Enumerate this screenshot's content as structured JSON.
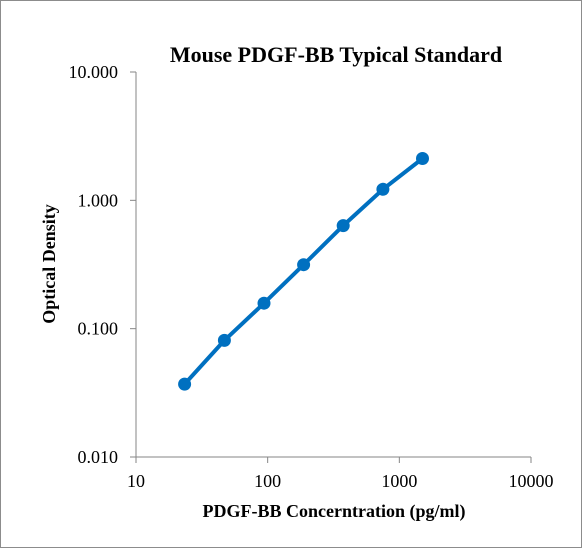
{
  "chart_data": {
    "type": "line",
    "title": "Mouse PDGF-BB Typical Standard",
    "xlabel": "PDGF-BB Concerntration (pg/ml)",
    "ylabel": "Optical Density",
    "x_scale": "log",
    "y_scale": "log",
    "xlim": [
      10,
      10000
    ],
    "ylim": [
      0.01,
      10
    ],
    "x_ticks": [
      10,
      100,
      1000,
      10000
    ],
    "x_tick_labels": [
      "10",
      "100",
      "1000",
      "10000"
    ],
    "y_ticks": [
      0.01,
      0.1,
      1,
      10
    ],
    "y_tick_labels": [
      "0.010",
      "0.100",
      "1.000",
      "10.000"
    ],
    "grid": false,
    "legend": "none",
    "series": [
      {
        "x": [
          23.4,
          46.9,
          93.8,
          187.5,
          375,
          750,
          1500
        ],
        "y": [
          0.037,
          0.081,
          0.158,
          0.315,
          0.635,
          1.22,
          2.12
        ],
        "color": "#0070C0"
      }
    ]
  }
}
